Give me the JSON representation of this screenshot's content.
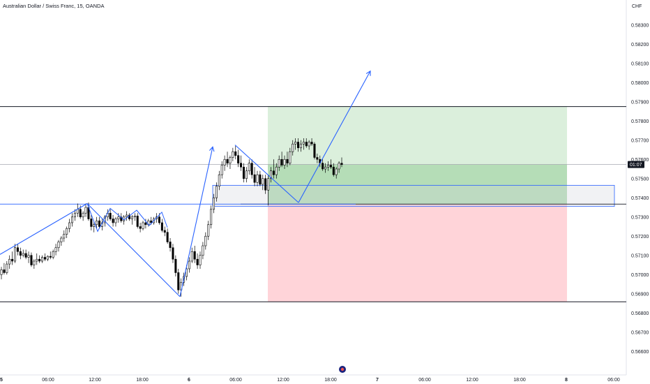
{
  "header": {
    "title": "Australian Dollar / Swiss Franc, 15, OANDA"
  },
  "price_axis": {
    "currency": "CHF",
    "current_price_label": "01:07"
  },
  "colors": {
    "candle_up": "#ffffff",
    "candle_down": "#000000",
    "candle_wick": "#000000",
    "drawing_blue": "#2962ff",
    "profit_zone": "#c8e6c9",
    "profit_zone_inner": "#a5d6a7",
    "loss_zone": "#ffcdd2",
    "level_line": "#000000",
    "badge": "#131722"
  },
  "chart_data": {
    "type": "candlestick",
    "title": "Australian Dollar / Swiss Franc, 15, OANDA",
    "ylabel": "CHF",
    "ylim": [
      0.5655,
      0.5835
    ],
    "y_ticks": [
      "0.58300",
      "0.58200",
      "0.58100",
      "0.58000",
      "0.57900",
      "0.57800",
      "0.57700",
      "0.57600",
      "0.57500",
      "0.57400",
      "0.57300",
      "0.57200",
      "0.57100",
      "0.57000",
      "0.56900",
      "0.56800",
      "0.56700",
      "0.56600"
    ],
    "x_ticks": [
      "5",
      "06:00",
      "12:00",
      "18:00",
      "6",
      "06:00",
      "12:00",
      "18:00",
      "7",
      "06:00",
      "12:00",
      "18:00",
      "8",
      "06:00"
    ],
    "grid": false,
    "horizontal_levels": [
      0.57875,
      0.57573,
      0.57367,
      0.56858
    ],
    "long_position": {
      "entry": 0.57368,
      "target": 0.57875,
      "stop": 0.56858,
      "current": 0.57573
    },
    "zone_box": {
      "top": 0.57465,
      "bottom": 0.57355
    },
    "trend_lines": [
      {
        "from": [
          0.57105
        ],
        "to": [
          0.5737
        ]
      },
      {
        "from": [
          0.5737
        ],
        "to": [
          0.56885
        ]
      },
      {
        "from": [
          0.56885
        ],
        "to": [
          0.57665
        ]
      },
      {
        "from": [
          0.57675
        ],
        "to": [
          0.57375
        ]
      },
      {
        "from": [
          0.57375
        ],
        "to": [
          0.5806
        ]
      }
    ],
    "candles_ohlc": [
      [
        0.57,
        0.5704,
        0.56975,
        0.57025
      ],
      [
        0.57025,
        0.5706,
        0.57,
        0.5701
      ],
      [
        0.5701,
        0.5707,
        0.57,
        0.57055
      ],
      [
        0.57055,
        0.571,
        0.5703,
        0.5708
      ],
      [
        0.5708,
        0.5712,
        0.5705,
        0.5707
      ],
      [
        0.5707,
        0.5716,
        0.5706,
        0.5714
      ],
      [
        0.5714,
        0.5716,
        0.571,
        0.5712
      ],
      [
        0.5712,
        0.5714,
        0.5708,
        0.571
      ],
      [
        0.571,
        0.5713,
        0.5709,
        0.5711
      ],
      [
        0.5711,
        0.5713,
        0.5708,
        0.5709
      ],
      [
        0.5709,
        0.5712,
        0.5706,
        0.571
      ],
      [
        0.571,
        0.57115,
        0.5704,
        0.5705
      ],
      [
        0.5705,
        0.5708,
        0.5703,
        0.5707
      ],
      [
        0.5707,
        0.5711,
        0.5705,
        0.5708
      ],
      [
        0.5708,
        0.571,
        0.5706,
        0.5707
      ],
      [
        0.5707,
        0.571,
        0.5706,
        0.5709
      ],
      [
        0.5709,
        0.5711,
        0.5707,
        0.5708
      ],
      [
        0.5708,
        0.571,
        0.5707,
        0.57095
      ],
      [
        0.57095,
        0.5712,
        0.5708,
        0.5709
      ],
      [
        0.5709,
        0.5713,
        0.5708,
        0.5712
      ],
      [
        0.5712,
        0.5716,
        0.571,
        0.5714
      ],
      [
        0.5714,
        0.5718,
        0.5712,
        0.5717
      ],
      [
        0.5717,
        0.572,
        0.5715,
        0.5719
      ],
      [
        0.5719,
        0.5723,
        0.5717,
        0.5721
      ],
      [
        0.5721,
        0.5725,
        0.5719,
        0.5724
      ],
      [
        0.5724,
        0.5729,
        0.5722,
        0.5727
      ],
      [
        0.5727,
        0.5732,
        0.5725,
        0.573
      ],
      [
        0.573,
        0.5734,
        0.5728,
        0.5732
      ],
      [
        0.5732,
        0.5737,
        0.573,
        0.5734
      ],
      [
        0.5734,
        0.5736,
        0.5729,
        0.573
      ],
      [
        0.573,
        0.5733,
        0.5728,
        0.5732
      ],
      [
        0.5732,
        0.5737,
        0.573,
        0.5735
      ],
      [
        0.5735,
        0.57375,
        0.5728,
        0.5729
      ],
      [
        0.5729,
        0.5731,
        0.5723,
        0.5725
      ],
      [
        0.5725,
        0.5728,
        0.5722,
        0.5726
      ],
      [
        0.5726,
        0.573,
        0.5724,
        0.5728
      ],
      [
        0.5728,
        0.573,
        0.5724,
        0.5725
      ],
      [
        0.5725,
        0.5729,
        0.5723,
        0.5727
      ],
      [
        0.5727,
        0.5731,
        0.5725,
        0.573
      ],
      [
        0.573,
        0.5734,
        0.5728,
        0.5732
      ],
      [
        0.5732,
        0.5734,
        0.5728,
        0.5729
      ],
      [
        0.5729,
        0.5731,
        0.5725,
        0.5727
      ],
      [
        0.5727,
        0.573,
        0.5725,
        0.5729
      ],
      [
        0.5729,
        0.5732,
        0.5727,
        0.573
      ],
      [
        0.573,
        0.5732,
        0.5727,
        0.5728
      ],
      [
        0.5728,
        0.5731,
        0.5726,
        0.573
      ],
      [
        0.573,
        0.5733,
        0.5728,
        0.5731
      ],
      [
        0.5731,
        0.5732,
        0.5728,
        0.5729
      ],
      [
        0.5729,
        0.5731,
        0.5726,
        0.573
      ],
      [
        0.573,
        0.5732,
        0.5728,
        0.57305
      ],
      [
        0.57305,
        0.5732,
        0.5724,
        0.5725
      ],
      [
        0.5725,
        0.5727,
        0.5722,
        0.5724
      ],
      [
        0.5724,
        0.5728,
        0.5723,
        0.5727
      ],
      [
        0.5727,
        0.5729,
        0.5724,
        0.5726
      ],
      [
        0.5726,
        0.5729,
        0.5725,
        0.5728
      ],
      [
        0.5728,
        0.573,
        0.5726,
        0.5727
      ],
      [
        0.5727,
        0.573,
        0.5726,
        0.5729
      ],
      [
        0.5729,
        0.5732,
        0.5727,
        0.573
      ],
      [
        0.573,
        0.5732,
        0.5726,
        0.5727
      ],
      [
        0.5727,
        0.5729,
        0.5722,
        0.5723
      ],
      [
        0.5723,
        0.5725,
        0.572,
        0.5722
      ],
      [
        0.5722,
        0.5724,
        0.5716,
        0.5717
      ],
      [
        0.5717,
        0.5719,
        0.5712,
        0.5714
      ],
      [
        0.5714,
        0.5716,
        0.5706,
        0.5708
      ],
      [
        0.5708,
        0.571,
        0.5699,
        0.5701
      ],
      [
        0.5701,
        0.5703,
        0.569,
        0.5692
      ],
      [
        0.5692,
        0.5698,
        0.56885,
        0.5696
      ],
      [
        0.5696,
        0.5701,
        0.5694,
        0.5699
      ],
      [
        0.5699,
        0.5705,
        0.5697,
        0.5703
      ],
      [
        0.5703,
        0.5709,
        0.5701,
        0.5707
      ],
      [
        0.5707,
        0.5714,
        0.5706,
        0.5712
      ],
      [
        0.5712,
        0.5715,
        0.5706,
        0.5708
      ],
      [
        0.5708,
        0.5711,
        0.5703,
        0.5705
      ],
      [
        0.5705,
        0.5712,
        0.5703,
        0.571
      ],
      [
        0.571,
        0.5717,
        0.5708,
        0.5715
      ],
      [
        0.5715,
        0.5722,
        0.5713,
        0.572
      ],
      [
        0.572,
        0.5728,
        0.5718,
        0.5726
      ],
      [
        0.5726,
        0.5736,
        0.5724,
        0.5734
      ],
      [
        0.5734,
        0.5742,
        0.5732,
        0.574
      ],
      [
        0.574,
        0.5748,
        0.5738,
        0.5746
      ],
      [
        0.5746,
        0.5754,
        0.5744,
        0.5752
      ],
      [
        0.5752,
        0.5759,
        0.575,
        0.5757
      ],
      [
        0.5757,
        0.5762,
        0.5754,
        0.576
      ],
      [
        0.576,
        0.5764,
        0.5756,
        0.5758
      ],
      [
        0.5758,
        0.5762,
        0.5755,
        0.5761
      ],
      [
        0.5761,
        0.5766,
        0.5759,
        0.5764
      ],
      [
        0.5764,
        0.5767,
        0.576,
        0.5762
      ],
      [
        0.5762,
        0.5765,
        0.5756,
        0.5758
      ],
      [
        0.5758,
        0.5762,
        0.5754,
        0.5756
      ],
      [
        0.5756,
        0.5758,
        0.5748,
        0.575
      ],
      [
        0.575,
        0.5756,
        0.5748,
        0.5754
      ],
      [
        0.5754,
        0.576,
        0.5752,
        0.5758
      ],
      [
        0.5758,
        0.576,
        0.575,
        0.5752
      ],
      [
        0.5752,
        0.5756,
        0.5746,
        0.5748
      ],
      [
        0.5748,
        0.5754,
        0.5746,
        0.5752
      ],
      [
        0.5752,
        0.5754,
        0.5746,
        0.5747
      ],
      [
        0.5747,
        0.5752,
        0.5744,
        0.575
      ],
      [
        0.575,
        0.5752,
        0.5742,
        0.5744
      ],
      [
        0.5744,
        0.5752,
        0.5736,
        0.575
      ],
      [
        0.575,
        0.5756,
        0.5748,
        0.5754
      ],
      [
        0.5754,
        0.576,
        0.575,
        0.5752
      ],
      [
        0.5752,
        0.5758,
        0.575,
        0.5756
      ],
      [
        0.5756,
        0.5762,
        0.5754,
        0.576
      ],
      [
        0.576,
        0.5764,
        0.5756,
        0.5757
      ],
      [
        0.5757,
        0.5762,
        0.5755,
        0.576
      ],
      [
        0.576,
        0.5764,
        0.5756,
        0.5758
      ],
      [
        0.5758,
        0.5766,
        0.5757,
        0.5764
      ],
      [
        0.5764,
        0.577,
        0.5762,
        0.5768
      ],
      [
        0.5768,
        0.5771,
        0.5765,
        0.5769
      ],
      [
        0.5769,
        0.5771,
        0.5764,
        0.5766
      ],
      [
        0.5766,
        0.577,
        0.5764,
        0.5768
      ],
      [
        0.5768,
        0.5771,
        0.5765,
        0.5769
      ],
      [
        0.5769,
        0.5771,
        0.5766,
        0.5767
      ],
      [
        0.5767,
        0.577,
        0.5765,
        0.5769
      ],
      [
        0.5769,
        0.5771,
        0.5767,
        0.5768
      ],
      [
        0.5768,
        0.5769,
        0.576,
        0.5761
      ],
      [
        0.5761,
        0.5763,
        0.5758,
        0.576
      ],
      [
        0.576,
        0.5762,
        0.5756,
        0.5758
      ],
      [
        0.5758,
        0.576,
        0.5754,
        0.5755
      ],
      [
        0.5755,
        0.5758,
        0.5753,
        0.5756
      ],
      [
        0.5756,
        0.5759,
        0.5754,
        0.5757
      ],
      [
        0.5757,
        0.576,
        0.5755,
        0.5756
      ],
      [
        0.5756,
        0.5758,
        0.5751,
        0.5752
      ],
      [
        0.5752,
        0.5756,
        0.575,
        0.5755
      ],
      [
        0.5755,
        0.5759,
        0.5753,
        0.5758
      ],
      [
        0.5758,
        0.5761,
        0.5756,
        0.57573
      ]
    ]
  }
}
